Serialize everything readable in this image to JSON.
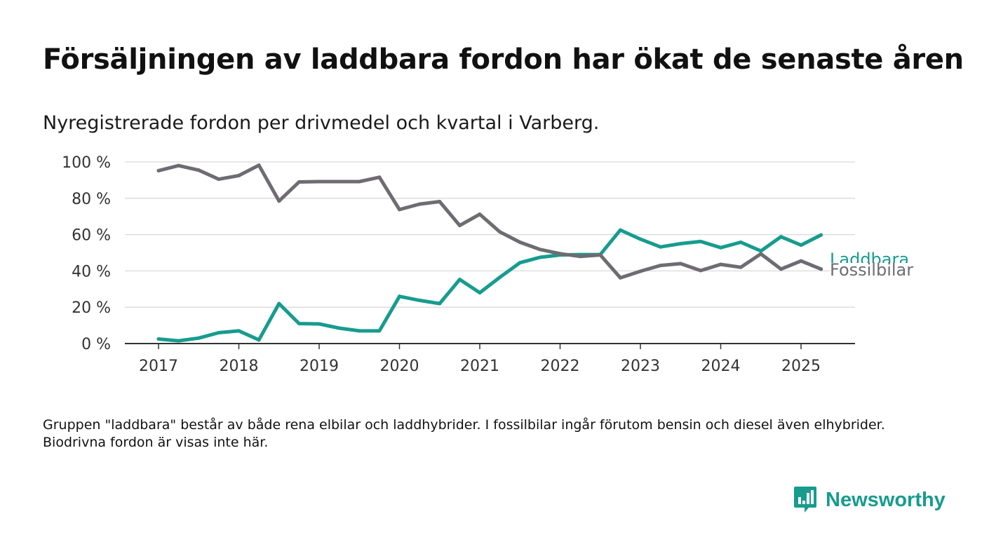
{
  "title": "Försäljningen av laddbara fordon har ökat de senaste åren",
  "subtitle": "Nyregistrerade fordon per drivmedel och kvartal i Varberg.",
  "note": "Gruppen \"laddbara\" består av både rena elbilar och laddhybrider. I fossilbilar ingår förutom bensin och diesel även elhybrider. Biodrivna fordon är visas inte här.",
  "brand": {
    "name": "Newsworthy",
    "color": "#179c8e",
    "icon": "newsworthy-bar-logo-icon"
  },
  "chart_data": {
    "type": "line",
    "x": [
      "2017-Q1",
      "2017-Q2",
      "2017-Q3",
      "2017-Q4",
      "2018-Q1",
      "2018-Q2",
      "2018-Q3",
      "2018-Q4",
      "2019-Q1",
      "2019-Q2",
      "2019-Q3",
      "2019-Q4",
      "2020-Q1",
      "2020-Q2",
      "2020-Q3",
      "2020-Q4",
      "2021-Q1",
      "2021-Q2",
      "2021-Q3",
      "2021-Q4",
      "2022-Q1",
      "2022-Q2",
      "2022-Q3",
      "2022-Q4",
      "2023-Q1",
      "2023-Q2",
      "2023-Q3",
      "2023-Q4",
      "2024-Q1",
      "2024-Q2",
      "2024-Q3",
      "2024-Q4",
      "2025-Q1",
      "2025-Q2"
    ],
    "xticks": [
      "2017",
      "2018",
      "2019",
      "2020",
      "2021",
      "2022",
      "2023",
      "2024",
      "2025"
    ],
    "yticks": [
      "0 %",
      "20 %",
      "40 %",
      "60 %",
      "80 %",
      "100 %"
    ],
    "ylim": [
      0,
      100
    ],
    "grid": true,
    "series": [
      {
        "name": "Laddbara",
        "color": "#179c8e",
        "values": [
          2.5,
          1.5,
          3,
          6,
          7,
          2,
          22,
          11,
          10.8,
          8.5,
          7,
          7,
          26,
          23.8,
          22,
          35.3,
          28,
          36.5,
          44.5,
          47.5,
          48.8,
          49,
          49,
          62.5,
          57.5,
          53.2,
          55,
          56.2,
          52.8,
          55.8,
          51,
          58.8,
          54.2,
          59.8
        ]
      },
      {
        "name": "Fossilbilar",
        "color": "#6e6c72",
        "values": [
          95.2,
          98,
          95.5,
          90.5,
          92.5,
          98.2,
          78.5,
          89,
          89.2,
          89.2,
          89.2,
          91.6,
          73.8,
          76.8,
          78.2,
          65,
          71.2,
          61.5,
          55.8,
          51.8,
          49.5,
          48,
          48.8,
          36.2,
          39.8,
          43,
          44,
          40.2,
          43.6,
          42,
          49.4,
          41,
          45.5,
          41
        ]
      }
    ]
  }
}
